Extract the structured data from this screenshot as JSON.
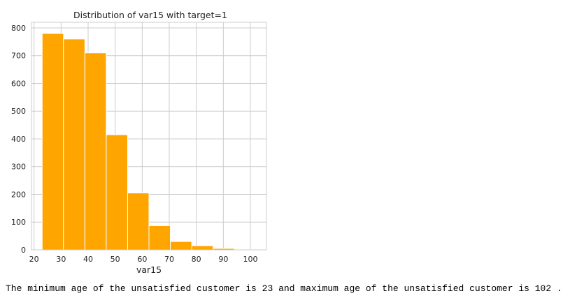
{
  "chart_data": {
    "type": "histogram",
    "title": "Distribution of var15 with target=1",
    "xlabel": "var15",
    "ylabel": "",
    "xlim": [
      19.05,
      105.95
    ],
    "ylim": [
      0,
      820
    ],
    "xticks": [
      20,
      30,
      40,
      50,
      60,
      70,
      80,
      90,
      100
    ],
    "yticks": [
      0,
      100,
      200,
      300,
      400,
      500,
      600,
      700,
      800
    ],
    "grid": true,
    "bar_color": "#FFA500",
    "bins": [
      {
        "start": 23.0,
        "end": 30.9,
        "count": 780
      },
      {
        "start": 30.9,
        "end": 38.8,
        "count": 760
      },
      {
        "start": 38.8,
        "end": 46.7,
        "count": 710
      },
      {
        "start": 46.7,
        "end": 54.6,
        "count": 415
      },
      {
        "start": 54.6,
        "end": 62.5,
        "count": 205
      },
      {
        "start": 62.5,
        "end": 70.4,
        "count": 87
      },
      {
        "start": 70.4,
        "end": 78.3,
        "count": 30
      },
      {
        "start": 78.3,
        "end": 86.2,
        "count": 15
      },
      {
        "start": 86.2,
        "end": 94.1,
        "count": 5
      },
      {
        "start": 94.1,
        "end": 102.0,
        "count": 1
      }
    ]
  },
  "output_text": "The minimum age of the unsatisfied customer is 23 and maximum age of the unsatisfied customer is 102 ."
}
